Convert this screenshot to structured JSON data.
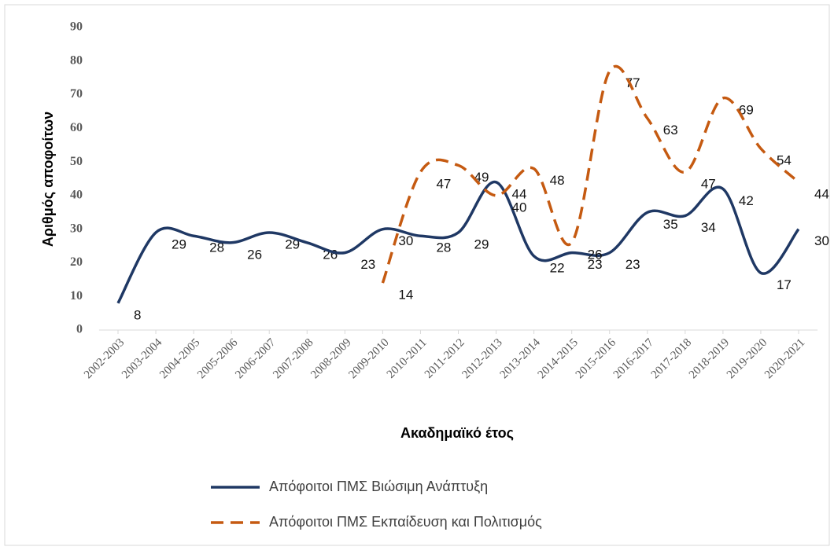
{
  "chart_data": {
    "type": "line",
    "x_label": "Ακαδημαϊκό έτος",
    "y_label": "Αριθμός αποφοίτων",
    "categories": [
      "2002-2003",
      "2003-2004",
      "2004-2005",
      "2005-2006",
      "2006-2007",
      "2007-2008",
      "2008-2009",
      "2009-2010",
      "2010-2011",
      "2011-2012",
      "2012-2013",
      "2013-2014",
      "2014-2015",
      "2015-2016",
      "2016-2017",
      "2017-2018",
      "2018-2019",
      "2019-2020",
      "2020-2021"
    ],
    "series": [
      {
        "name": "Απόφοιτοι ΠΜΣ Βιώσιμη Ανάπτυξη",
        "color": "#1f3864",
        "dash": false,
        "values": [
          8,
          29,
          28,
          26,
          29,
          26,
          23,
          30,
          28,
          29,
          44,
          22,
          23,
          23,
          35,
          34,
          42,
          17,
          30
        ]
      },
      {
        "name": "Απόφοιτοι ΠΜΣ Εκπαίδευση και Πολιτισμός",
        "color": "#c55a11",
        "dash": true,
        "values": [
          null,
          null,
          null,
          null,
          null,
          null,
          null,
          14,
          47,
          49,
          40,
          48,
          26,
          77,
          63,
          47,
          69,
          54,
          44
        ]
      }
    ],
    "ylim": [
      0,
      90
    ],
    "yticks": [
      0,
      10,
      20,
      30,
      40,
      50,
      60,
      70,
      80,
      90
    ],
    "smooth": true,
    "legend": "bottom"
  }
}
